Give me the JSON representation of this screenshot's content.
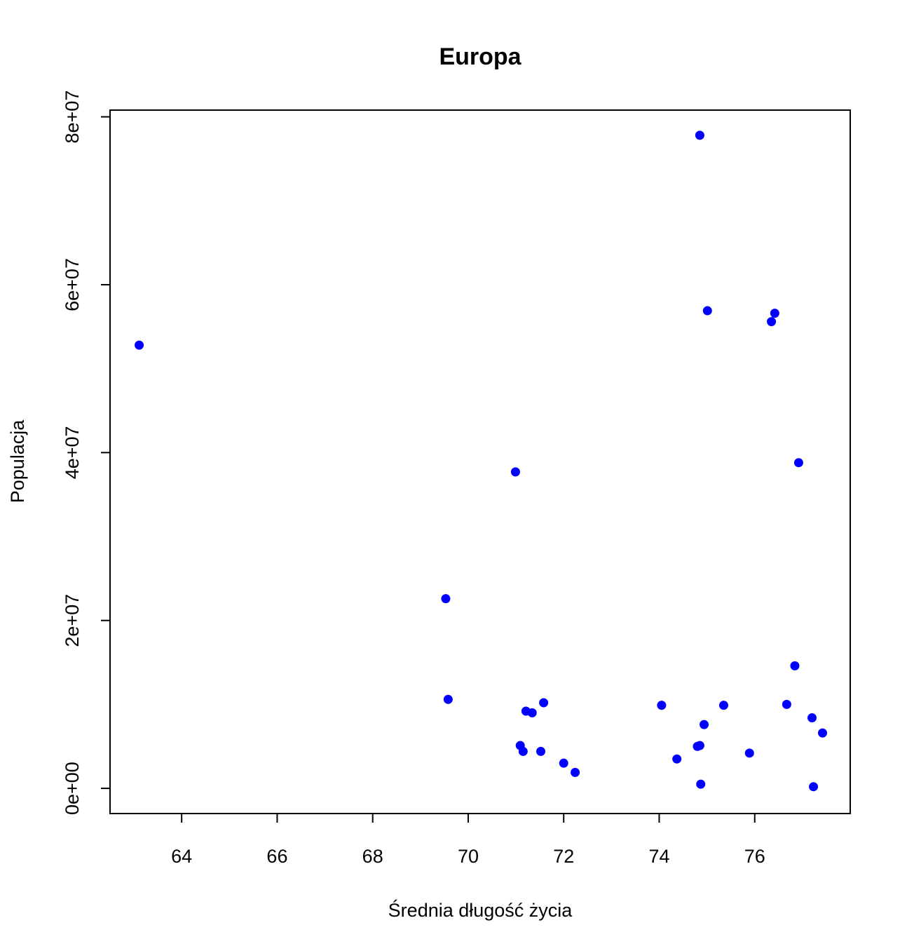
{
  "chart_data": {
    "type": "scatter",
    "title": "Europa",
    "xlabel": "Średnia długość życia",
    "ylabel": "Populacja",
    "xlim": [
      62.5,
      78.0
    ],
    "ylim": [
      -3000000,
      80800000
    ],
    "x_ticks": [
      64,
      66,
      68,
      70,
      72,
      74,
      76
    ],
    "x_tick_labels": [
      "64",
      "66",
      "68",
      "70",
      "72",
      "74",
      "76"
    ],
    "y_ticks": [
      0,
      20000000,
      40000000,
      60000000,
      80000000
    ],
    "y_tick_labels": [
      "0e+00",
      "2e+07",
      "4e+07",
      "6e+07",
      "8e+07"
    ],
    "grid": false,
    "marker_color": "#0000ff",
    "points": [
      {
        "x": 63.11,
        "y": 52800000
      },
      {
        "x": 69.53,
        "y": 22600000
      },
      {
        "x": 69.58,
        "y": 10600000
      },
      {
        "x": 70.99,
        "y": 37700000
      },
      {
        "x": 71.09,
        "y": 5100000
      },
      {
        "x": 71.15,
        "y": 4400000
      },
      {
        "x": 71.21,
        "y": 9200000
      },
      {
        "x": 71.34,
        "y": 9000000
      },
      {
        "x": 71.52,
        "y": 4400000
      },
      {
        "x": 71.58,
        "y": 10200000
      },
      {
        "x": 72.0,
        "y": 3000000
      },
      {
        "x": 72.24,
        "y": 1900000
      },
      {
        "x": 74.05,
        "y": 9900000
      },
      {
        "x": 74.37,
        "y": 3500000
      },
      {
        "x": 74.8,
        "y": 5000000
      },
      {
        "x": 74.85,
        "y": 5100000
      },
      {
        "x": 74.85,
        "y": 77800000
      },
      {
        "x": 74.87,
        "y": 500000
      },
      {
        "x": 74.94,
        "y": 7600000
      },
      {
        "x": 75.01,
        "y": 56900000
      },
      {
        "x": 75.35,
        "y": 9900000
      },
      {
        "x": 75.89,
        "y": 4200000
      },
      {
        "x": 76.35,
        "y": 55600000
      },
      {
        "x": 76.42,
        "y": 56600000
      },
      {
        "x": 76.67,
        "y": 10000000
      },
      {
        "x": 76.84,
        "y": 14600000
      },
      {
        "x": 76.92,
        "y": 38800000
      },
      {
        "x": 77.2,
        "y": 8400000
      },
      {
        "x": 77.23,
        "y": 200000
      },
      {
        "x": 77.42,
        "y": 6600000
      }
    ]
  }
}
